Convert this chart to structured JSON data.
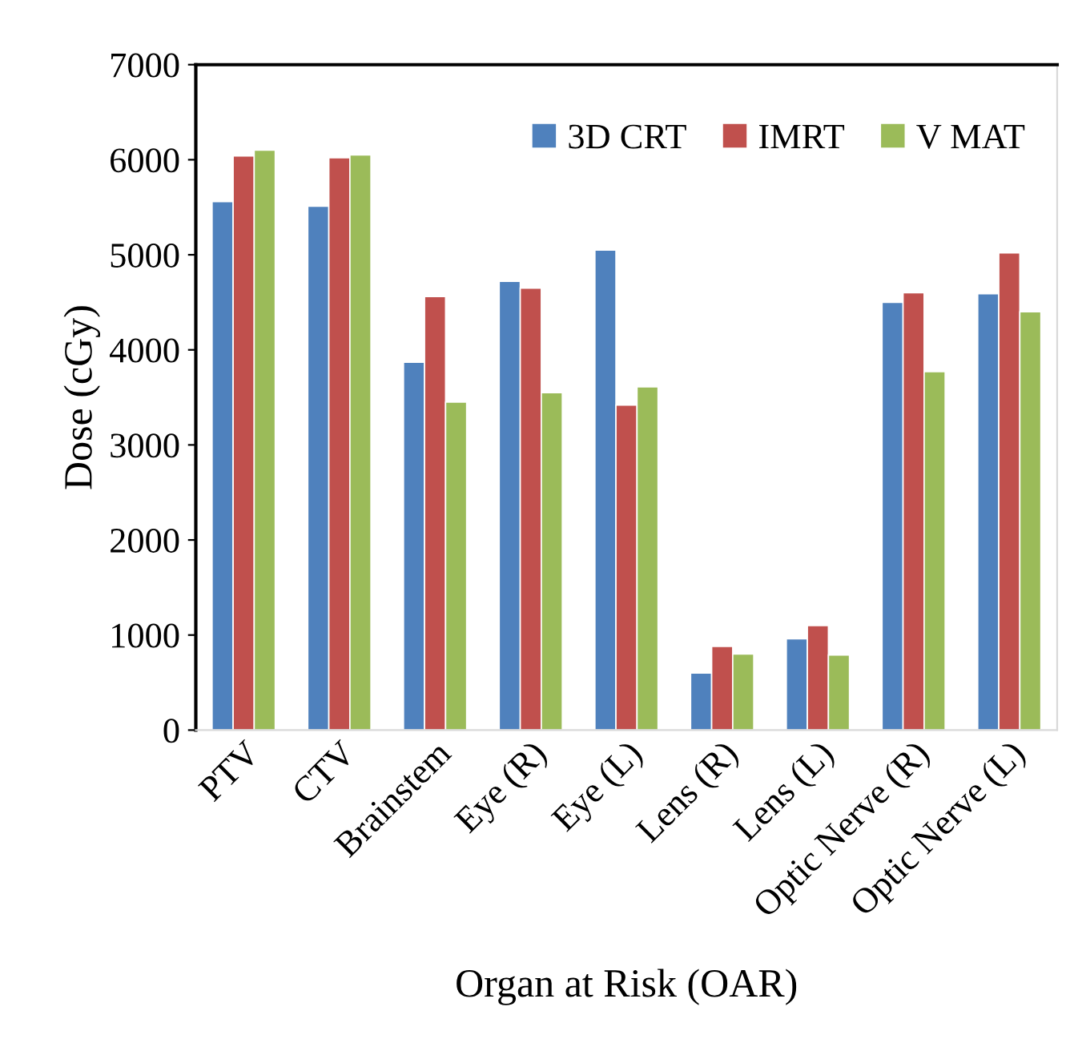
{
  "chart_data": {
    "type": "bar",
    "xlabel": "Organ at Risk (OAR)",
    "ylabel": "Dose (cGy)",
    "categories": [
      "PTV",
      "CTV",
      "Brainstem",
      "Eye (R)",
      "Eye (L)",
      "Lens (R)",
      "Lens (L)",
      "Optic Nerve (R)",
      "Optic Nerve (L)"
    ],
    "series": [
      {
        "name": "3D CRT",
        "color": "#4f81bd",
        "values": [
          5560,
          5510,
          3870,
          4720,
          5050,
          600,
          960,
          4500,
          4590
        ]
      },
      {
        "name": "IMRT",
        "color": "#c0504d",
        "values": [
          6040,
          6020,
          4560,
          4650,
          3420,
          880,
          1100,
          4600,
          5020
        ]
      },
      {
        "name": "V MAT",
        "color": "#9bbb59",
        "values": [
          6100,
          6050,
          3450,
          3550,
          3610,
          800,
          790,
          3770,
          4400
        ]
      }
    ],
    "ylim": [
      0,
      7000
    ],
    "yticks": [
      0,
      1000,
      2000,
      3000,
      4000,
      5000,
      6000,
      7000
    ],
    "grid": false,
    "legend": "top right"
  }
}
